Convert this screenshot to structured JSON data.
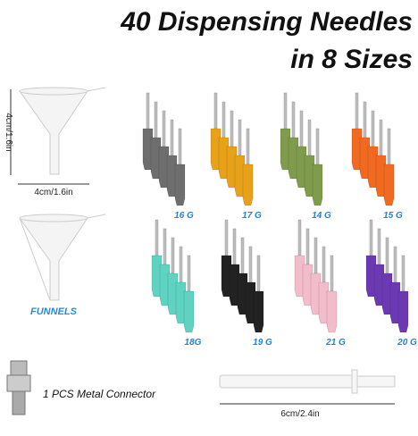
{
  "title": {
    "line1": "40 Dispensing Needles",
    "line2": "in 8 Sizes"
  },
  "funnel": {
    "height_label": "4cm/1.6in",
    "width_label": "4cm/1.6in",
    "caption": "FUNNELS"
  },
  "needles": [
    {
      "label": "16 G"
    },
    {
      "label": "17 G"
    },
    {
      "label": "14 G"
    },
    {
      "label": "15 G"
    },
    {
      "label": "18G"
    },
    {
      "label": "19 G"
    },
    {
      "label": "21 G"
    },
    {
      "label": "20 G"
    }
  ],
  "connector": {
    "caption": "1 PCS Metal Connector"
  },
  "tube": {
    "length_label": "6cm/2.4in"
  }
}
